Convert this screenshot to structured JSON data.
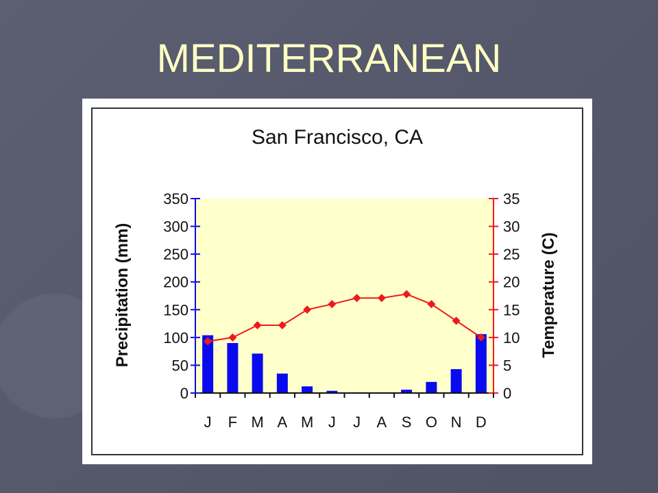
{
  "slide": {
    "title": "MEDITERRANEAN"
  },
  "chart_data": {
    "type": "bar",
    "title": "San Francisco, CA",
    "categories": [
      "J",
      "F",
      "M",
      "A",
      "M",
      "J",
      "J",
      "A",
      "S",
      "O",
      "N",
      "D"
    ],
    "series": [
      {
        "values": [
          104,
          90,
          71,
          35,
          12,
          4,
          0,
          0,
          6,
          20,
          43,
          106
        ],
        "axis": "left",
        "chart_type": "bar",
        "color": "#0a0aee"
      },
      {
        "values": [
          9.3,
          10,
          12.2,
          12.2,
          15,
          16,
          17.1,
          17.1,
          17.8,
          16,
          13,
          10
        ],
        "axis": "right",
        "chart_type": "line",
        "color": "#ee1a1a"
      }
    ],
    "ylabel": "Precipitation (mm)",
    "y2label": "Temperature (C)",
    "ylim": [
      0,
      350
    ],
    "y2lim": [
      0,
      35
    ],
    "yticks": [
      "0",
      "50",
      "100",
      "150",
      "200",
      "250",
      "300",
      "350"
    ],
    "y2ticks": [
      "0",
      "5",
      "10",
      "15",
      "20",
      "25",
      "30",
      "35"
    ],
    "grid": false,
    "plot_background": "#ffffcc",
    "left_axis_color": "#0a0aee",
    "right_axis_color": "#ee1a1a"
  }
}
